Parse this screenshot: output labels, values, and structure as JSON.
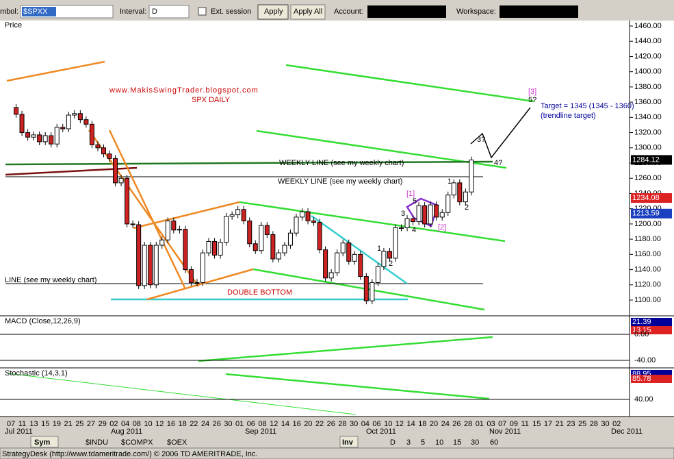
{
  "toolbar": {
    "symbol_label": "mbol:",
    "symbol": "$SPXX",
    "interval_label": "Interval:",
    "interval": "D",
    "ext_session": "Ext. session",
    "apply": "Apply",
    "apply_all": "Apply All",
    "account_label": "Account:",
    "workspace_label": "Workspace:"
  },
  "price_panel": {
    "title": "Price",
    "ylim": [
      1100,
      1460
    ],
    "yticks": [
      {
        "value": 1100,
        "label": "1100.00"
      },
      {
        "value": 1120,
        "label": "1120.00"
      },
      {
        "value": 1140,
        "label": "1140.00"
      },
      {
        "value": 1160,
        "label": "1160.00"
      },
      {
        "value": 1180,
        "label": "1180.00"
      },
      {
        "value": 1200,
        "label": "1200.00"
      },
      {
        "value": 1220,
        "label": "1220.00"
      },
      {
        "value": 1240,
        "label": "1240.00"
      },
      {
        "value": 1260,
        "label": "1260.00"
      },
      {
        "value": 1280,
        "label": "1280.00"
      },
      {
        "value": 1300,
        "label": "1300.00"
      },
      {
        "value": 1320,
        "label": "1320.00"
      },
      {
        "value": 1340,
        "label": "1340.00"
      },
      {
        "value": 1360,
        "label": "1360.00"
      },
      {
        "value": 1380,
        "label": "1380.00"
      },
      {
        "value": 1400,
        "label": "1400.00"
      },
      {
        "value": 1420,
        "label": "1420.00"
      },
      {
        "value": 1440,
        "label": "1440.00"
      },
      {
        "value": 1460,
        "label": "1460.00"
      }
    ],
    "closes": [
      1353,
      1344,
      1320,
      1314,
      1317,
      1308,
      1316,
      1305,
      1327,
      1325,
      1343,
      1345,
      1337,
      1331,
      1304,
      1300,
      1292,
      1286,
      1254,
      1260,
      1200,
      1199,
      1119,
      1172,
      1120,
      1172,
      1179,
      1204,
      1192,
      1193,
      1140,
      1123,
      1123,
      1162,
      1177,
      1159,
      1176,
      1210,
      1212,
      1219,
      1204,
      1174,
      1165,
      1198,
      1186,
      1154,
      1162,
      1172,
      1188,
      1209,
      1216,
      1204,
      1202,
      1166,
      1129,
      1136,
      1162,
      1175,
      1151,
      1160,
      1131,
      1099,
      1123,
      1144,
      1164,
      1155,
      1195,
      1195,
      1207,
      1203,
      1224,
      1200,
      1225,
      1209,
      1215,
      1238,
      1254,
      1229,
      1242,
      1284
    ],
    "badges": [
      {
        "value": 1284.12,
        "label": "1284.12"
      },
      {
        "value": 1234.08,
        "label": "1234.08"
      },
      {
        "value": 1213.59,
        "label": "1213.59"
      }
    ],
    "annotations": {
      "blog": "www.MakisSwingTrader.blogspot.com",
      "spx": "SPX DAILY",
      "weekly1": "WEEKLY LINE (see my weekly chart)",
      "weekly2": "WEEKLY LINE (see my weekly chart)",
      "line": "LINE (see my weekly chart)",
      "double_bottom": "DOUBLE BOTTOM",
      "wave3": "[3]",
      "w5q": "5?",
      "target": "Target = 1345 (1345 - 1360)",
      "trendline": "(trendline target)",
      "w3q": "3?",
      "w4q": "4?",
      "w1": "[1]",
      "w2": "[2]",
      "a1": "1",
      "a2": "2",
      "a3": "3",
      "a4": "4",
      "a5": "5",
      "b1": "1",
      "b2": "2"
    }
  },
  "macd_panel": {
    "title": "MACD (Close,12,26,9)",
    "labels": [
      "21.39",
      "13.15"
    ],
    "yticks": [
      {
        "value": 0,
        "label": "0.00"
      },
      {
        "value": -40,
        "label": "-40.00"
      }
    ]
  },
  "stoch_panel": {
    "title": "Stochastic (14,3,1)",
    "labels": [
      "88.95",
      "85.78"
    ],
    "yticks": [
      {
        "value": 40,
        "label": "40.00"
      }
    ]
  },
  "date_axis": {
    "days": [
      "07",
      "11",
      "13",
      "15",
      "19",
      "21",
      "25",
      "27",
      "29",
      "02",
      "04",
      "08",
      "10",
      "12",
      "16",
      "18",
      "22",
      "24",
      "26",
      "30",
      "01",
      "06",
      "08",
      "12",
      "14",
      "16",
      "20",
      "22",
      "26",
      "28",
      "30",
      "04",
      "06",
      "10",
      "12",
      "14",
      "18",
      "20",
      "24",
      "26",
      "28",
      "01",
      "03",
      "07",
      "09",
      "11",
      "15",
      "17",
      "21",
      "23",
      "25",
      "28",
      "30",
      "02"
    ],
    "months": [
      "Jul 2011",
      "Aug 2011",
      "Sep 2011",
      "Oct 2011",
      "Nov 2011",
      "Dec 2011"
    ]
  },
  "tabs": {
    "sym": "Sym",
    "symbols": [
      "$INDU",
      "$COMPX",
      "$OEX"
    ],
    "inv": "Inv",
    "intervals": [
      "D",
      "3",
      "5",
      "10",
      "15",
      "30",
      "60"
    ]
  },
  "status": "StrategyDesk (http://www.tdameritrade.com/) © 2006 TD AMERITRADE, Inc."
}
